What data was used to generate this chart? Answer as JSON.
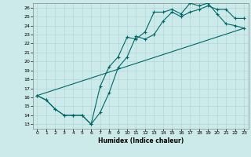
{
  "xlabel": "Humidex (Indice chaleur)",
  "bg_color": "#cceaea",
  "line_color": "#006666",
  "grid_color": "#aad4d4",
  "xlim": [
    -0.5,
    23.5
  ],
  "ylim": [
    12.5,
    26.5
  ],
  "xticks": [
    0,
    1,
    2,
    3,
    4,
    5,
    6,
    7,
    8,
    9,
    10,
    11,
    12,
    13,
    14,
    15,
    16,
    17,
    18,
    19,
    20,
    21,
    22,
    23
  ],
  "yticks": [
    13,
    14,
    15,
    16,
    17,
    18,
    19,
    20,
    21,
    22,
    23,
    24,
    25,
    26
  ],
  "line1_x": [
    0,
    1,
    2,
    3,
    4,
    5,
    6,
    7,
    8,
    9,
    10,
    11,
    12,
    13,
    14,
    15,
    16,
    17,
    18,
    19,
    20,
    21,
    22,
    23
  ],
  "line1_y": [
    16.2,
    15.7,
    14.7,
    14.0,
    14.0,
    14.0,
    13.0,
    17.2,
    19.4,
    20.5,
    22.7,
    22.5,
    23.3,
    25.5,
    25.5,
    25.8,
    25.3,
    26.5,
    26.2,
    26.5,
    25.3,
    24.2,
    24.0,
    23.7
  ],
  "line2_x": [
    0,
    1,
    2,
    3,
    4,
    5,
    6,
    7,
    8,
    9,
    10,
    11,
    12,
    13,
    14,
    15,
    16,
    17,
    18,
    19,
    20,
    21,
    22,
    23
  ],
  "line2_y": [
    16.2,
    15.7,
    14.7,
    14.0,
    14.0,
    14.0,
    13.0,
    14.3,
    16.5,
    19.3,
    20.5,
    22.8,
    22.5,
    23.0,
    24.5,
    25.5,
    25.0,
    25.5,
    25.8,
    26.2,
    25.8,
    25.8,
    24.8,
    24.8
  ],
  "line3_x": [
    0,
    23
  ],
  "line3_y": [
    16.2,
    23.7
  ],
  "markersize": 3,
  "lw": 0.8
}
